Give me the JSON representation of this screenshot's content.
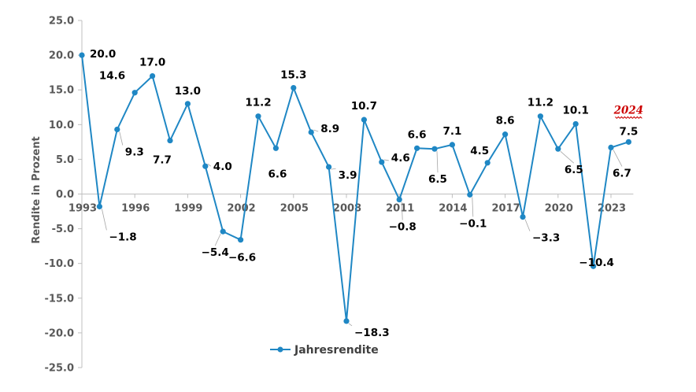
{
  "chart_data": {
    "type": "line",
    "title": "",
    "xlabel": "",
    "ylabel": "Rendite in Prozent",
    "ylim": [
      -25,
      25
    ],
    "ytick_step": 5,
    "yticks": [
      "25.0",
      "20.0",
      "15.0",
      "10.0",
      "5.0",
      "0.0",
      "-5.0",
      "-10.0",
      "-15.0",
      "-20.0",
      "-25.0"
    ],
    "xtick_labels": [
      "1993",
      "1996",
      "1999",
      "2002",
      "2005",
      "2008",
      "2011",
      "2014",
      "2017",
      "2020",
      "2023"
    ],
    "categories": [
      "1993",
      "1994",
      "1995",
      "1996",
      "1997",
      "1998",
      "1999",
      "2000",
      "2001",
      "2002",
      "2003",
      "2004",
      "2005",
      "2006",
      "2007",
      "2008",
      "2009",
      "2010",
      "2011",
      "2012",
      "2013",
      "2014",
      "2015",
      "2016",
      "2017",
      "2018",
      "2019",
      "2020",
      "2021",
      "2022",
      "2023",
      "2024"
    ],
    "series": [
      {
        "name": "Jahresrendite",
        "color": "#1f87c4",
        "values": [
          20.0,
          -1.8,
          9.3,
          14.6,
          17.0,
          7.7,
          13.0,
          4.0,
          -5.4,
          -6.6,
          11.2,
          6.6,
          15.3,
          8.9,
          3.9,
          -18.3,
          10.7,
          4.6,
          -0.8,
          6.6,
          6.5,
          7.1,
          -0.1,
          4.5,
          8.6,
          -3.3,
          11.2,
          6.5,
          10.1,
          -10.4,
          6.7,
          7.5
        ],
        "labels": [
          "20.0",
          "-1.8",
          "9.3",
          "14.6",
          "17.0",
          "7.7",
          "13.0",
          "4.0",
          "-5.4",
          "-6.6",
          "11.2",
          "6.6",
          "15.3",
          "8.9",
          "3.9",
          "-18.3",
          "10.7",
          "4.6",
          "-0.8",
          "6.6",
          "6.5",
          "7.1",
          "-0.1",
          "4.5",
          "8.6",
          "-3.3",
          "11.2",
          "6.5",
          "10.1",
          "-10.4",
          "6.7",
          "7.5"
        ]
      }
    ],
    "annotation": "2024",
    "legend": {
      "label": "Jahresrendite",
      "placement": "bottom-center"
    },
    "grid": false
  }
}
